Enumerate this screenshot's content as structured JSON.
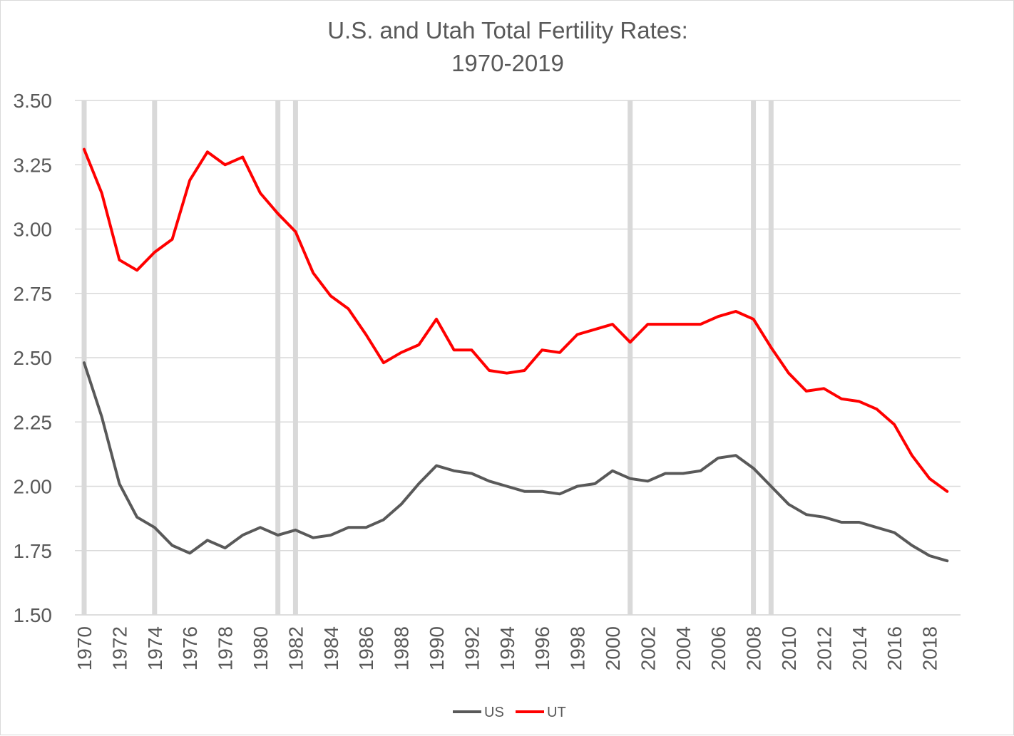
{
  "chart_data": {
    "type": "line",
    "title": "U.S. and Utah Total Fertility Rates:",
    "subtitle": "1970-2019",
    "xlabel": "",
    "ylabel": "",
    "ylim": [
      1.5,
      3.5
    ],
    "xlim": [
      1970,
      2019
    ],
    "y_ticks": [
      "1.50",
      "1.75",
      "2.00",
      "2.25",
      "2.50",
      "2.75",
      "3.00",
      "3.25",
      "3.50"
    ],
    "x_ticks": [
      "1970",
      "1972",
      "1974",
      "1976",
      "1978",
      "1980",
      "1982",
      "1984",
      "1986",
      "1988",
      "1990",
      "1992",
      "1994",
      "1996",
      "1998",
      "2000",
      "2002",
      "2004",
      "2006",
      "2008",
      "2010",
      "2012",
      "2014",
      "2016",
      "2018"
    ],
    "grid": "horizontal",
    "legend_position": "bottom",
    "recession_years": [
      1970,
      1974,
      1981,
      1982,
      2001,
      2008,
      2009
    ],
    "x": [
      1970,
      1971,
      1972,
      1973,
      1974,
      1975,
      1976,
      1977,
      1978,
      1979,
      1980,
      1981,
      1982,
      1983,
      1984,
      1985,
      1986,
      1987,
      1988,
      1989,
      1990,
      1991,
      1992,
      1993,
      1994,
      1995,
      1996,
      1997,
      1998,
      1999,
      2000,
      2001,
      2002,
      2003,
      2004,
      2005,
      2006,
      2007,
      2008,
      2009,
      2010,
      2011,
      2012,
      2013,
      2014,
      2015,
      2016,
      2017,
      2018,
      2019
    ],
    "series": [
      {
        "name": "US",
        "color": "#595959",
        "values": [
          2.48,
          2.27,
          2.01,
          1.88,
          1.84,
          1.77,
          1.74,
          1.79,
          1.76,
          1.81,
          1.84,
          1.81,
          1.83,
          1.8,
          1.81,
          1.84,
          1.84,
          1.87,
          1.93,
          2.01,
          2.08,
          2.06,
          2.05,
          2.02,
          2.0,
          1.98,
          1.98,
          1.97,
          2.0,
          2.01,
          2.06,
          2.03,
          2.02,
          2.05,
          2.05,
          2.06,
          2.11,
          2.12,
          2.07,
          2.0,
          1.93,
          1.89,
          1.88,
          1.86,
          1.86,
          1.84,
          1.82,
          1.77,
          1.73,
          1.71
        ]
      },
      {
        "name": "UT",
        "color": "#ff0000",
        "values": [
          3.31,
          3.14,
          2.88,
          2.84,
          2.91,
          2.96,
          3.19,
          3.3,
          3.25,
          3.28,
          3.14,
          3.06,
          2.99,
          2.83,
          2.74,
          2.69,
          2.59,
          2.48,
          2.52,
          2.55,
          2.65,
          2.53,
          2.53,
          2.45,
          2.44,
          2.45,
          2.53,
          2.52,
          2.59,
          2.61,
          2.63,
          2.56,
          2.63,
          2.63,
          2.63,
          2.63,
          2.66,
          2.68,
          2.65,
          2.54,
          2.44,
          2.37,
          2.38,
          2.34,
          2.33,
          2.3,
          2.24,
          2.12,
          2.03,
          1.98
        ]
      }
    ]
  }
}
